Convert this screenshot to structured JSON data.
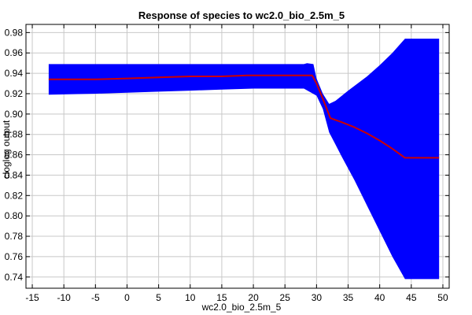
{
  "chart_data": {
    "type": "area",
    "title": "Response of species to wc2.0_bio_2.5m_5",
    "xlabel": "wc2.0_bio_2.5m_5",
    "ylabel": "cloglog output",
    "xlim": [
      -16,
      51
    ],
    "ylim": [
      0.729,
      0.988
    ],
    "x_ticks": [
      -15,
      -10,
      -5,
      0,
      5,
      10,
      15,
      20,
      25,
      30,
      35,
      40,
      45,
      50
    ],
    "x_tick_labels": [
      "-15",
      "-10",
      "-5",
      "0",
      "5",
      "10",
      "15",
      "20",
      "25",
      "30",
      "35",
      "40",
      "45",
      "50"
    ],
    "y_ticks": [
      0.74,
      0.76,
      0.78,
      0.8,
      0.82,
      0.84,
      0.86,
      0.88,
      0.9,
      0.92,
      0.94,
      0.96,
      0.98
    ],
    "y_tick_labels": [
      "0.74",
      "0.76",
      "0.78",
      "0.80",
      "0.82",
      "0.84",
      "0.86",
      "0.88",
      "0.90",
      "0.92",
      "0.94",
      "0.96",
      "0.98"
    ],
    "grid": true,
    "band_color": "#0000ff",
    "line_color": "#cc0000",
    "band_upper": [
      [
        -12.4,
        0.949
      ],
      [
        -5,
        0.949
      ],
      [
        0,
        0.949
      ],
      [
        5,
        0.949
      ],
      [
        10,
        0.949
      ],
      [
        15,
        0.949
      ],
      [
        20,
        0.949
      ],
      [
        25,
        0.949
      ],
      [
        28,
        0.949
      ],
      [
        28.5,
        0.95
      ],
      [
        29.5,
        0.949
      ],
      [
        30,
        0.935
      ],
      [
        31,
        0.92
      ],
      [
        32,
        0.91
      ],
      [
        33,
        0.913
      ],
      [
        35,
        0.923
      ],
      [
        38,
        0.937
      ],
      [
        40,
        0.948
      ],
      [
        42,
        0.96
      ],
      [
        44,
        0.974
      ],
      [
        49.4,
        0.974
      ]
    ],
    "band_lower": [
      [
        49.4,
        0.738
      ],
      [
        44,
        0.738
      ],
      [
        42,
        0.76
      ],
      [
        40,
        0.785
      ],
      [
        38,
        0.81
      ],
      [
        36,
        0.835
      ],
      [
        34,
        0.858
      ],
      [
        33,
        0.87
      ],
      [
        32,
        0.882
      ],
      [
        31,
        0.905
      ],
      [
        30,
        0.918
      ],
      [
        28,
        0.925
      ],
      [
        25,
        0.925
      ],
      [
        20,
        0.925
      ],
      [
        15,
        0.924
      ],
      [
        10,
        0.923
      ],
      [
        5,
        0.922
      ],
      [
        0,
        0.921
      ],
      [
        -5,
        0.92
      ],
      [
        -12.4,
        0.919
      ]
    ],
    "series": [
      {
        "x": [
          -12.4,
          -10,
          -5,
          0,
          5,
          10,
          15,
          19,
          25,
          29.3,
          30,
          31,
          32.2,
          34,
          36,
          38,
          40,
          42,
          44,
          49.4
        ],
        "y": [
          0.934,
          0.934,
          0.934,
          0.935,
          0.936,
          0.937,
          0.937,
          0.938,
          0.938,
          0.938,
          0.93,
          0.915,
          0.896,
          0.892,
          0.887,
          0.881,
          0.874,
          0.866,
          0.857,
          0.857
        ]
      }
    ]
  }
}
